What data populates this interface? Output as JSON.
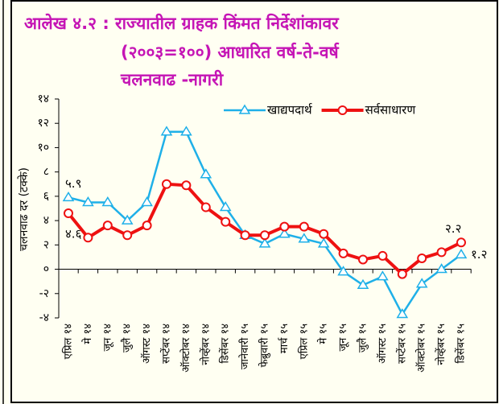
{
  "chart_data": {
    "type": "line",
    "title": [
      "आलेख ४.२ : राज्यातील ग्राहक किंमत निर्देशांकावर",
      "(२००३=१००) आधारित वर्ष-ते-वर्ष",
      "चलनवाढ -नागरी"
    ],
    "y_label": "चलनवाढ दर (टक्के)",
    "categories": [
      "एप्रिल १४",
      "मे १४",
      "जून १४",
      "जुलै १४",
      "ऑगस्ट १४",
      "सप्टेंबर १४",
      "ऑक्टोबर १४",
      "नोव्हेंबर १४",
      "डिसेंबर १४",
      "जानेवारी १५",
      "फेब्रुवारी १५",
      "मार्च १५",
      "एप्रिल १५",
      "मे १५",
      "जून १५",
      "जुलै १५",
      "ऑगस्ट १५",
      "सप्टेंबर १५",
      "ऑक्टोबर १५",
      "नोव्हेंबर १५",
      "डिसेंबर १५"
    ],
    "series": [
      {
        "name": "खाद्यपदार्थ",
        "color": "#1fb0e8",
        "marker": "triangle",
        "values": [
          5.9,
          5.5,
          5.5,
          4.0,
          5.5,
          11.3,
          11.3,
          7.8,
          5.1,
          2.8,
          2.1,
          2.9,
          2.5,
          2.1,
          -0.2,
          -1.3,
          -0.6,
          -3.7,
          -1.2,
          0,
          1.2
        ],
        "value_labels": [
          "५.९",
          null,
          null,
          null,
          null,
          null,
          null,
          null,
          null,
          null,
          null,
          null,
          null,
          null,
          null,
          null,
          null,
          null,
          null,
          null,
          "१.२"
        ]
      },
      {
        "name": "सर्वसाधारण",
        "color": "#ee1111",
        "marker": "circle",
        "values": [
          4.6,
          2.6,
          3.6,
          2.8,
          3.6,
          7.0,
          6.9,
          5.1,
          3.9,
          2.8,
          2.8,
          3.5,
          3.5,
          2.9,
          1.3,
          0.8,
          1.1,
          -0.4,
          0.9,
          1.4,
          2.2
        ],
        "value_labels": [
          "४.६",
          null,
          null,
          null,
          null,
          null,
          null,
          null,
          null,
          null,
          null,
          null,
          null,
          null,
          null,
          null,
          null,
          null,
          null,
          null,
          "२.२"
        ]
      }
    ],
    "ylim": [
      -4,
      14
    ],
    "yticks": [
      {
        "value": -4,
        "label": "-४"
      },
      {
        "value": -2,
        "label": "-२"
      },
      {
        "value": 0,
        "label": "०"
      },
      {
        "value": 2,
        "label": "२"
      },
      {
        "value": 4,
        "label": "४"
      },
      {
        "value": 6,
        "label": "६"
      },
      {
        "value": 8,
        "label": "८"
      },
      {
        "value": 10,
        "label": "१०"
      },
      {
        "value": 12,
        "label": "१२"
      },
      {
        "value": 14,
        "label": "१४"
      }
    ],
    "legend": "top-right"
  }
}
